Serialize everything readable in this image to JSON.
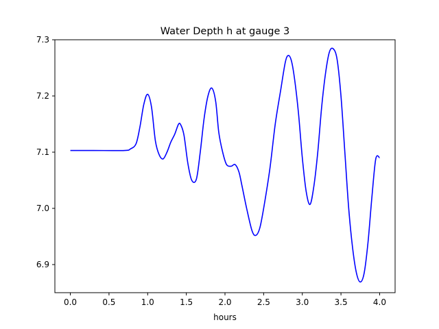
{
  "chart_data": {
    "type": "line",
    "title": "Water Depth h at gauge 3",
    "xlabel": "hours",
    "ylabel": "",
    "xlim": [
      -0.2,
      4.2
    ],
    "ylim": [
      6.85,
      7.3
    ],
    "xticks": [
      0.0,
      0.5,
      1.0,
      1.5,
      2.0,
      2.5,
      3.0,
      3.5,
      4.0
    ],
    "xtick_labels": [
      "0.0",
      "0.5",
      "1.0",
      "1.5",
      "2.0",
      "2.5",
      "3.0",
      "3.5",
      "4.0"
    ],
    "yticks": [
      6.9,
      7.0,
      7.1,
      7.2,
      7.3
    ],
    "ytick_labels": [
      "6.9",
      "7.0",
      "7.1",
      "7.2",
      "7.3"
    ],
    "grid": false,
    "series": [
      {
        "color": "#0000ff",
        "x": [
          0.0,
          0.3,
          0.7,
          0.78,
          0.85,
          0.9,
          0.95,
          1.0,
          1.05,
          1.1,
          1.15,
          1.2,
          1.25,
          1.3,
          1.35,
          1.4,
          1.43,
          1.47,
          1.52,
          1.57,
          1.63,
          1.68,
          1.73,
          1.78,
          1.83,
          1.88,
          1.92,
          1.97,
          2.02,
          2.08,
          2.13,
          2.18,
          2.22,
          2.28,
          2.35,
          2.4,
          2.45,
          2.5,
          2.58,
          2.65,
          2.72,
          2.78,
          2.82,
          2.86,
          2.9,
          2.95,
          3.0,
          3.05,
          3.1,
          3.15,
          3.2,
          3.25,
          3.3,
          3.35,
          3.4,
          3.45,
          3.5,
          3.55,
          3.6,
          3.65,
          3.7,
          3.75,
          3.8,
          3.85,
          3.9,
          3.95,
          4.0
        ],
        "y": [
          7.103,
          7.103,
          7.103,
          7.106,
          7.115,
          7.145,
          7.185,
          7.203,
          7.18,
          7.12,
          7.095,
          7.088,
          7.1,
          7.118,
          7.132,
          7.15,
          7.148,
          7.13,
          7.08,
          7.05,
          7.052,
          7.1,
          7.16,
          7.2,
          7.214,
          7.19,
          7.135,
          7.1,
          7.078,
          7.075,
          7.078,
          7.065,
          7.04,
          7.0,
          6.96,
          6.952,
          6.965,
          7.0,
          7.07,
          7.15,
          7.21,
          7.26,
          7.272,
          7.262,
          7.23,
          7.17,
          7.09,
          7.03,
          7.007,
          7.04,
          7.1,
          7.18,
          7.24,
          7.278,
          7.284,
          7.265,
          7.2,
          7.1,
          7.0,
          6.93,
          6.885,
          6.869,
          6.885,
          6.94,
          7.02,
          7.088,
          7.09
        ]
      }
    ]
  }
}
